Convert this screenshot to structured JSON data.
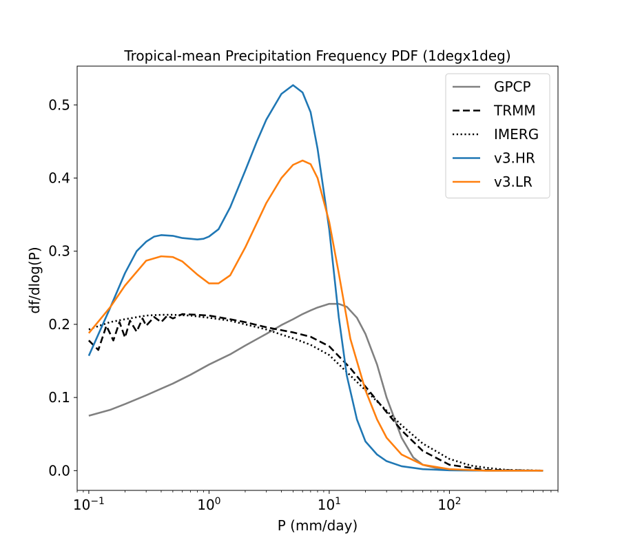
{
  "chart_data": {
    "type": "line",
    "title": "Tropical-mean Precipitation Frequency PDF (1degx1deg)",
    "xlabel": "P (mm/day)",
    "ylabel": "df/dlog(P)",
    "xscale": "log",
    "xlim": [
      0.08,
      800
    ],
    "ylim": [
      -0.027,
      0.553
    ],
    "xticks": [
      {
        "value": 0.1,
        "base": "10",
        "exp": "−1"
      },
      {
        "value": 1,
        "base": "10",
        "exp": "0"
      },
      {
        "value": 10,
        "base": "10",
        "exp": "1"
      },
      {
        "value": 100,
        "base": "10",
        "exp": "2"
      }
    ],
    "yticks": [
      {
        "value": 0.0,
        "label": "0.0"
      },
      {
        "value": 0.1,
        "label": "0.1"
      },
      {
        "value": 0.2,
        "label": "0.2"
      },
      {
        "value": 0.3,
        "label": "0.3"
      },
      {
        "value": 0.4,
        "label": "0.4"
      },
      {
        "value": 0.5,
        "label": "0.5"
      }
    ],
    "grid": false,
    "legend_position": "top-right",
    "series": [
      {
        "name": "GPCP",
        "color": "#808080",
        "style": "solid",
        "x": [
          0.1,
          0.15,
          0.2,
          0.3,
          0.4,
          0.5,
          0.7,
          1.0,
          1.5,
          2,
          3,
          4,
          5,
          6,
          7,
          8,
          10,
          12,
          14,
          17,
          20,
          25,
          30,
          40,
          50,
          60,
          80,
          100,
          200,
          600
        ],
        "y": [
          0.075,
          0.083,
          0.091,
          0.103,
          0.112,
          0.119,
          0.131,
          0.145,
          0.159,
          0.171,
          0.187,
          0.199,
          0.207,
          0.214,
          0.219,
          0.223,
          0.228,
          0.228,
          0.224,
          0.209,
          0.187,
          0.145,
          0.1,
          0.045,
          0.018,
          0.008,
          0.003,
          0.001,
          0.0,
          0.0
        ]
      },
      {
        "name": "TRMM",
        "color": "#000000",
        "style": "dashed",
        "x": [
          0.1,
          0.12,
          0.14,
          0.16,
          0.18,
          0.2,
          0.22,
          0.25,
          0.28,
          0.3,
          0.35,
          0.4,
          0.45,
          0.5,
          0.6,
          0.8,
          1.0,
          1.5,
          2,
          3,
          4,
          5,
          7,
          10,
          15,
          20,
          30,
          40,
          60,
          100,
          200,
          600
        ],
        "y": [
          0.178,
          0.165,
          0.198,
          0.178,
          0.203,
          0.182,
          0.205,
          0.19,
          0.208,
          0.198,
          0.21,
          0.203,
          0.212,
          0.208,
          0.214,
          0.213,
          0.212,
          0.207,
          0.203,
          0.196,
          0.192,
          0.189,
          0.183,
          0.17,
          0.14,
          0.115,
          0.08,
          0.055,
          0.027,
          0.008,
          0.001,
          0.0
        ]
      },
      {
        "name": "IMERG",
        "color": "#000000",
        "style": "dotted",
        "x": [
          0.1,
          0.15,
          0.2,
          0.3,
          0.4,
          0.5,
          0.7,
          1.0,
          1.5,
          2,
          3,
          4,
          5,
          7,
          10,
          15,
          20,
          30,
          40,
          60,
          100,
          150,
          200,
          300,
          600
        ],
        "y": [
          0.193,
          0.203,
          0.207,
          0.212,
          0.213,
          0.213,
          0.212,
          0.209,
          0.205,
          0.2,
          0.193,
          0.186,
          0.181,
          0.172,
          0.158,
          0.13,
          0.11,
          0.082,
          0.062,
          0.037,
          0.016,
          0.007,
          0.004,
          0.001,
          0.0
        ]
      },
      {
        "name": "v3.HR",
        "color": "#1f77b4",
        "style": "solid",
        "x": [
          0.1,
          0.15,
          0.2,
          0.25,
          0.3,
          0.35,
          0.4,
          0.5,
          0.6,
          0.7,
          0.8,
          0.9,
          1.0,
          1.2,
          1.5,
          2,
          2.5,
          3,
          4,
          5,
          6,
          7,
          8,
          10,
          12,
          14,
          17,
          20,
          25,
          30,
          40,
          60,
          100,
          200,
          600
        ],
        "y": [
          0.157,
          0.222,
          0.27,
          0.3,
          0.313,
          0.32,
          0.322,
          0.321,
          0.318,
          0.317,
          0.316,
          0.317,
          0.32,
          0.33,
          0.36,
          0.41,
          0.45,
          0.48,
          0.515,
          0.527,
          0.517,
          0.49,
          0.44,
          0.33,
          0.21,
          0.13,
          0.07,
          0.04,
          0.022,
          0.013,
          0.006,
          0.002,
          0.0005,
          0.0,
          0.0
        ]
      },
      {
        "name": "v3.LR",
        "color": "#ff7f0e",
        "style": "solid",
        "x": [
          0.1,
          0.15,
          0.2,
          0.3,
          0.4,
          0.5,
          0.6,
          0.8,
          1.0,
          1.2,
          1.5,
          2,
          3,
          4,
          5,
          6,
          7,
          8,
          10,
          12,
          15,
          20,
          25,
          30,
          40,
          60,
          100,
          200,
          600
        ],
        "y": [
          0.188,
          0.223,
          0.253,
          0.287,
          0.293,
          0.292,
          0.286,
          0.268,
          0.256,
          0.256,
          0.267,
          0.305,
          0.366,
          0.4,
          0.418,
          0.424,
          0.419,
          0.4,
          0.34,
          0.27,
          0.18,
          0.11,
          0.07,
          0.045,
          0.022,
          0.008,
          0.002,
          0.0,
          0.0
        ]
      }
    ]
  }
}
